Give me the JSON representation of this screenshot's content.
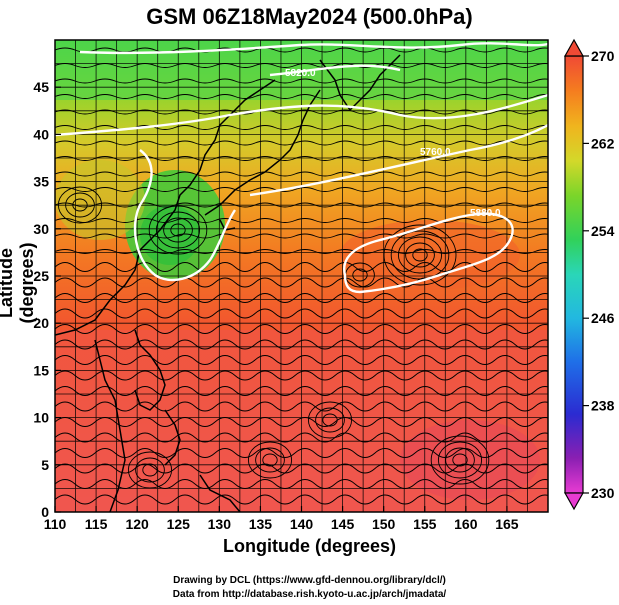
{
  "title": "GSM 06Z18May2024 (500.0hPa)",
  "axes": {
    "xlabel": "Longitude (degrees)",
    "ylabel": "Latitude  (degrees)",
    "xticks": [
      "110",
      "115",
      "120",
      "125",
      "130",
      "135",
      "140",
      "145",
      "150",
      "155",
      "160",
      "165"
    ],
    "yticks": [
      "0",
      "5",
      "10",
      "15",
      "20",
      "25",
      "30",
      "35",
      "40",
      "45"
    ],
    "xrange": [
      110,
      170
    ],
    "yrange": [
      0,
      50
    ]
  },
  "colorbar": {
    "ticks": [
      "270",
      "262",
      "254",
      "246",
      "238",
      "230"
    ],
    "range": [
      230,
      270
    ],
    "colors": [
      "#e83bd2",
      "#7a1aa8",
      "#2b2bd1",
      "#1f6fe8",
      "#22b8e0",
      "#2ad6b8",
      "#31d15a",
      "#7ad52a",
      "#d3d82a",
      "#f0b41e",
      "#f57d1f",
      "#f04a35",
      "#f2575d"
    ]
  },
  "contour_labels": [
    "5880.0",
    "5880.0",
    "5820.0",
    "5760.0",
    "5880.0"
  ],
  "credits": {
    "line1": "Drawing by DCL (https://www.gfd-dennou.org/library/dcl/)",
    "line2": "Data from http://database.rish.kyoto-u.ac.jp/arch/jmadata/"
  },
  "map_style": {
    "grid_color": "#000000",
    "coast_color": "#000000",
    "contour_color": "#ffffff"
  }
}
